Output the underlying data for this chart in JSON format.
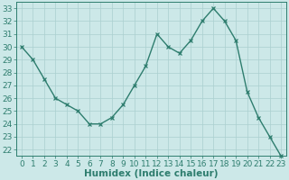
{
  "x": [
    0,
    1,
    2,
    3,
    4,
    5,
    6,
    7,
    8,
    9,
    10,
    11,
    12,
    13,
    14,
    15,
    16,
    17,
    18,
    19,
    20,
    21,
    22,
    23
  ],
  "y": [
    30,
    29,
    27.5,
    26,
    25.5,
    25,
    24,
    24,
    24.5,
    25.5,
    27,
    28.5,
    31,
    30,
    29.5,
    30.5,
    32,
    33,
    32,
    30.5,
    26.5,
    24.5,
    23,
    21.5
  ],
  "line_color": "#2e7d6e",
  "marker": "x",
  "marker_size": 3,
  "bg_color": "#cce8e8",
  "grid_color": "#aacfcf",
  "xlabel": "Humidex (Indice chaleur)",
  "xlim": [
    -0.5,
    23.5
  ],
  "ylim": [
    21.5,
    33.5
  ],
  "yticks": [
    22,
    23,
    24,
    25,
    26,
    27,
    28,
    29,
    30,
    31,
    32,
    33
  ],
  "xticks": [
    0,
    1,
    2,
    3,
    4,
    5,
    6,
    7,
    8,
    9,
    10,
    11,
    12,
    13,
    14,
    15,
    16,
    17,
    18,
    19,
    20,
    21,
    22,
    23
  ],
  "xlabel_fontsize": 7.5,
  "tick_fontsize": 6.5,
  "line_width": 1.0
}
